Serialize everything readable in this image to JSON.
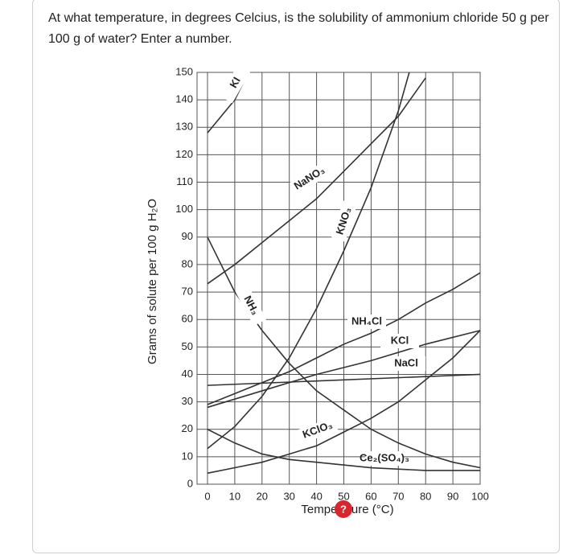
{
  "question": "At what temperature, in degrees Celcius, is the solubility of ammonium chloride 50 g per 100 g of water? Enter a number.",
  "chart_data": {
    "type": "line",
    "xlabel": "Temperature (°C)",
    "ylabel": "Grams of solute per 100 g H₂O",
    "xlim": [
      0,
      100
    ],
    "ylim": [
      0,
      150
    ],
    "xticks": [
      0,
      10,
      20,
      30,
      40,
      50,
      60,
      70,
      80,
      90,
      100
    ],
    "yticks": [
      0,
      10,
      20,
      30,
      40,
      50,
      60,
      70,
      80,
      90,
      100,
      110,
      120,
      130,
      140,
      150
    ],
    "grid": true,
    "series": [
      {
        "name": "KI",
        "color": "#333333",
        "x": [
          0,
          10,
          15
        ],
        "values": [
          128,
          140,
          150
        ]
      },
      {
        "name": "NaNO₃",
        "color": "#333333",
        "x": [
          0,
          10,
          20,
          30,
          40,
          50,
          60,
          70,
          80
        ],
        "values": [
          73,
          80,
          88,
          96,
          104,
          114,
          124,
          134,
          148
        ]
      },
      {
        "name": "KNO₃",
        "color": "#333333",
        "x": [
          0,
          10,
          20,
          30,
          40,
          50,
          60,
          70,
          74
        ],
        "values": [
          13,
          21,
          32,
          46,
          64,
          85,
          108,
          136,
          150
        ]
      },
      {
        "name": "NH₃",
        "color": "#333333",
        "x": [
          0,
          10,
          20,
          30,
          40,
          50,
          60,
          70,
          80,
          90,
          100
        ],
        "values": [
          90,
          70,
          56,
          44,
          34,
          27,
          20,
          15,
          11,
          8,
          6
        ]
      },
      {
        "name": "NH₄Cl",
        "color": "#333333",
        "x": [
          0,
          10,
          20,
          30,
          40,
          50,
          60,
          70,
          80,
          90,
          100
        ],
        "values": [
          29,
          33,
          37,
          41,
          46,
          51,
          55,
          60,
          66,
          71,
          77
        ]
      },
      {
        "name": "KCl",
        "color": "#333333",
        "x": [
          0,
          20,
          40,
          60,
          80,
          100
        ],
        "values": [
          28,
          34,
          40,
          45,
          51,
          56
        ]
      },
      {
        "name": "NaCl",
        "color": "#333333",
        "x": [
          0,
          100
        ],
        "values": [
          36,
          40
        ]
      },
      {
        "name": "KClO₃",
        "color": "#333333",
        "x": [
          0,
          10,
          20,
          30,
          40,
          50,
          60,
          70,
          80,
          90,
          100
        ],
        "values": [
          4,
          6,
          8,
          11,
          14,
          19,
          24,
          30,
          38,
          46,
          56
        ]
      },
      {
        "name": "Ce₂(SO₄)₃",
        "color": "#333333",
        "x": [
          0,
          10,
          20,
          30,
          40,
          60,
          80,
          100
        ],
        "values": [
          20,
          15,
          11,
          9,
          8,
          6,
          5,
          5
        ]
      }
    ]
  }
}
